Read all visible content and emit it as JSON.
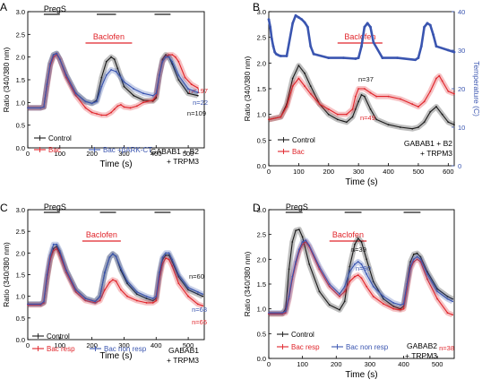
{
  "colors": {
    "black": "#1a1a1a",
    "red": "#e0242a",
    "blue": "#3a55b0",
    "lightblue": "#7b9bd6"
  },
  "chart_data": [
    {
      "panel": "A",
      "type": "line",
      "xlabel": "Time (s)",
      "ylabel": "Ratio (340/380 nm)",
      "xlim": [
        0,
        550
      ],
      "ylim": [
        0.0,
        3.0
      ],
      "xticks": [
        0,
        100,
        200,
        300,
        400,
        500
      ],
      "yticks": [
        "0.0",
        "0.5",
        "1.0",
        "1.5",
        "2.0",
        "2.5",
        "3.0"
      ],
      "stimulus_bars": [
        {
          "x0": 50,
          "x1": 100,
          "label": "PregS",
          "color": "#1a1a1a"
        },
        {
          "x0": 215,
          "x1": 275,
          "label": "",
          "color": "#1a1a1a"
        },
        {
          "x0": 395,
          "x1": 445,
          "label": "",
          "color": "#1a1a1a"
        },
        {
          "x0": 180,
          "x1": 325,
          "label": "Baclofen",
          "color": "#e0242a"
        }
      ],
      "series": [
        {
          "name": "Control",
          "color": "#1a1a1a",
          "x": [
            0,
            40,
            50,
            60,
            70,
            80,
            90,
            100,
            120,
            150,
            180,
            200,
            215,
            230,
            245,
            260,
            270,
            280,
            300,
            330,
            360,
            390,
            400,
            410,
            420,
            430,
            440,
            450,
            470,
            500,
            530
          ],
          "y": [
            0.88,
            0.88,
            0.9,
            1.4,
            1.85,
            2.05,
            2.08,
            1.95,
            1.6,
            1.2,
            1.02,
            0.98,
            1.05,
            1.55,
            1.9,
            2.0,
            1.95,
            1.75,
            1.35,
            1.15,
            1.05,
            1.03,
            1.1,
            1.6,
            1.95,
            2.05,
            2.0,
            1.85,
            1.5,
            1.2,
            1.15
          ],
          "label": "n=109"
        },
        {
          "name": "Bac",
          "color": "#e0242a",
          "x": [
            0,
            40,
            50,
            60,
            70,
            80,
            90,
            100,
            120,
            150,
            180,
            200,
            215,
            230,
            245,
            260,
            270,
            280,
            290,
            300,
            320,
            340,
            360,
            390,
            400,
            410,
            420,
            430,
            440,
            450,
            460,
            470,
            490,
            510,
            530
          ],
          "y": [
            0.88,
            0.88,
            0.9,
            1.35,
            1.8,
            2.0,
            2.05,
            1.95,
            1.55,
            1.15,
            0.88,
            0.78,
            0.75,
            0.72,
            0.72,
            0.78,
            0.85,
            0.92,
            0.95,
            0.9,
            0.88,
            0.92,
            1.0,
            1.05,
            1.15,
            1.6,
            1.9,
            2.0,
            2.05,
            2.05,
            2.0,
            1.9,
            1.55,
            1.4,
            1.32
          ],
          "label": "n=197"
        },
        {
          "name": "Bac +βARK-CT",
          "color": "#3a55b0",
          "x": [
            0,
            40,
            50,
            60,
            70,
            80,
            90,
            100,
            120,
            150,
            180,
            200,
            215,
            230,
            245,
            260,
            275,
            290,
            300,
            330,
            360,
            390,
            400,
            410,
            420,
            430,
            440,
            450,
            470,
            500,
            530
          ],
          "y": [
            0.88,
            0.88,
            0.9,
            1.4,
            1.85,
            2.05,
            2.08,
            1.95,
            1.6,
            1.2,
            1.02,
            0.98,
            1.02,
            1.35,
            1.6,
            1.72,
            1.68,
            1.55,
            1.45,
            1.3,
            1.2,
            1.15,
            1.2,
            1.6,
            1.9,
            2.0,
            2.0,
            1.9,
            1.6,
            1.3,
            1.22
          ],
          "label": "n=22"
        }
      ]
    },
    {
      "panel": "B",
      "type": "line",
      "xlabel": "Time (s)",
      "ylabel": "Ratio (340/380 nm)",
      "y2label": "Temperature (C)",
      "xlim": [
        0,
        620
      ],
      "ylim": [
        0.0,
        3.0
      ],
      "y2lim": [
        0,
        40
      ],
      "xticks": [
        0,
        100,
        200,
        300,
        400,
        500,
        600
      ],
      "yticks": [
        "0.0",
        "0.5",
        "1.0",
        "1.5",
        "2.0",
        "2.5",
        "3.0"
      ],
      "y2ticks": [
        "0",
        "10",
        "20",
        "30",
        "40"
      ],
      "stimulus_bars": [
        {
          "x0": 230,
          "x1": 380,
          "label": "Baclofen",
          "color": "#e0242a"
        }
      ],
      "series": [
        {
          "name": "Control",
          "color": "#1a1a1a",
          "x": [
            0,
            40,
            60,
            80,
            100,
            120,
            140,
            170,
            200,
            230,
            260,
            280,
            290,
            300,
            310,
            320,
            340,
            360,
            400,
            440,
            480,
            500,
            520,
            540,
            560,
            580,
            600,
            620
          ],
          "y": [
            0.9,
            0.95,
            1.2,
            1.7,
            1.95,
            1.8,
            1.55,
            1.2,
            1.0,
            0.9,
            0.85,
            0.95,
            1.1,
            1.25,
            1.38,
            1.35,
            1.1,
            0.9,
            0.8,
            0.75,
            0.72,
            0.75,
            0.85,
            1.05,
            1.15,
            1.0,
            0.85,
            0.8
          ],
          "label": "n=37"
        },
        {
          "name": "Bac",
          "color": "#e0242a",
          "x": [
            0,
            40,
            60,
            80,
            100,
            120,
            140,
            170,
            200,
            230,
            260,
            280,
            290,
            300,
            320,
            340,
            360,
            400,
            440,
            480,
            500,
            520,
            540,
            560,
            570,
            580,
            600,
            620
          ],
          "y": [
            0.9,
            0.95,
            1.15,
            1.55,
            1.7,
            1.55,
            1.4,
            1.2,
            1.1,
            1.0,
            1.0,
            1.1,
            1.35,
            1.5,
            1.5,
            1.42,
            1.35,
            1.35,
            1.3,
            1.2,
            1.15,
            1.25,
            1.45,
            1.7,
            1.75,
            1.65,
            1.45,
            1.4
          ],
          "label": "n=49"
        },
        {
          "name": "Temperature",
          "color": "#3a55b0",
          "axis": "y2",
          "x": [
            0,
            5,
            10,
            15,
            20,
            25,
            30,
            35,
            40,
            60,
            80,
            90,
            100,
            110,
            120,
            130,
            140,
            150,
            200,
            250,
            290,
            300,
            310,
            320,
            330,
            340,
            350,
            380,
            430,
            490,
            500,
            510,
            520,
            530,
            540,
            550,
            560,
            600,
            620
          ],
          "y": [
            38,
            36,
            33,
            31,
            29.5,
            29,
            28.8,
            28.6,
            28.5,
            28.5,
            37,
            39,
            38.5,
            38,
            37.2,
            36,
            31,
            29,
            28,
            28,
            27.8,
            28,
            31,
            36,
            37,
            36,
            32,
            28,
            28,
            27.5,
            28,
            31,
            36,
            37,
            36.5,
            34,
            31,
            30,
            29.5
          ]
        }
      ]
    },
    {
      "panel": "C",
      "type": "line",
      "xlabel": "Time (s)",
      "ylabel": "Ratio (340/380 nm)",
      "xlim": [
        0,
        550
      ],
      "ylim": [
        0.0,
        3.0
      ],
      "xticks": [
        0,
        100,
        200,
        300,
        400,
        500
      ],
      "yticks": [
        "0.0",
        "0.5",
        "1.0",
        "1.5",
        "2.0",
        "2.5",
        "3.0"
      ],
      "stimulus_bars": [
        {
          "x0": 50,
          "x1": 100,
          "label": "PregS",
          "color": "#1a1a1a"
        },
        {
          "x0": 225,
          "x1": 275,
          "label": "",
          "color": "#1a1a1a"
        },
        {
          "x0": 395,
          "x1": 445,
          "label": "",
          "color": "#1a1a1a"
        },
        {
          "x0": 170,
          "x1": 290,
          "label": "Baclofen",
          "color": "#e0242a"
        }
      ],
      "series": [
        {
          "name": "Control",
          "color": "#1a1a1a",
          "x": [
            0,
            40,
            50,
            60,
            70,
            80,
            90,
            100,
            120,
            150,
            180,
            210,
            225,
            240,
            255,
            265,
            275,
            290,
            310,
            340,
            370,
            390,
            400,
            410,
            420,
            430,
            440,
            450,
            470,
            500,
            530,
            545
          ],
          "y": [
            0.82,
            0.82,
            0.85,
            1.4,
            1.85,
            2.1,
            2.15,
            2.0,
            1.6,
            1.15,
            0.95,
            0.88,
            1.0,
            1.55,
            1.9,
            1.98,
            1.92,
            1.6,
            1.3,
            1.05,
            0.95,
            0.9,
            0.95,
            1.5,
            1.85,
            1.95,
            1.95,
            1.8,
            1.45,
            1.15,
            1.05,
            1.0
          ],
          "label": "n=60"
        },
        {
          "name": "Bac resp",
          "color": "#e0242a",
          "x": [
            0,
            40,
            50,
            60,
            70,
            80,
            90,
            100,
            120,
            150,
            180,
            210,
            225,
            240,
            255,
            265,
            275,
            290,
            310,
            340,
            370,
            390,
            400,
            410,
            420,
            430,
            440,
            450,
            470,
            500,
            530,
            545
          ],
          "y": [
            0.8,
            0.8,
            0.85,
            1.4,
            1.85,
            2.05,
            2.1,
            1.95,
            1.55,
            1.1,
            0.9,
            0.85,
            0.9,
            1.15,
            1.32,
            1.38,
            1.35,
            1.15,
            1.0,
            0.9,
            0.85,
            0.85,
            0.9,
            1.4,
            1.75,
            1.88,
            1.85,
            1.7,
            1.3,
            1.0,
            0.82,
            0.78
          ],
          "label": "n=65"
        },
        {
          "name": "Bac non resp",
          "color": "#3a55b0",
          "x": [
            0,
            40,
            50,
            60,
            70,
            80,
            90,
            100,
            120,
            150,
            180,
            210,
            225,
            240,
            255,
            265,
            275,
            290,
            310,
            340,
            370,
            390,
            400,
            410,
            420,
            430,
            440,
            450,
            470,
            500,
            530,
            545
          ],
          "y": [
            0.82,
            0.82,
            0.88,
            1.5,
            1.95,
            2.2,
            2.2,
            2.05,
            1.6,
            1.15,
            0.95,
            0.88,
            1.0,
            1.55,
            1.9,
            1.98,
            1.92,
            1.65,
            1.35,
            1.1,
            1.0,
            0.95,
            1.0,
            1.55,
            1.9,
            2.0,
            2.0,
            1.85,
            1.5,
            1.2,
            1.1,
            1.05
          ],
          "label": "n=68"
        }
      ]
    },
    {
      "panel": "D",
      "type": "line",
      "xlabel": "Time (s)",
      "ylabel": "Ratio (340/380 nm)",
      "xlim": [
        0,
        550
      ],
      "ylim": [
        0.0,
        3.0
      ],
      "xticks": [
        0,
        100,
        200,
        300,
        400,
        500
      ],
      "yticks": [
        "0.0",
        "0.5",
        "1.0",
        "1.5",
        "2.0",
        "2.5",
        "3.0"
      ],
      "stimulus_bars": [
        {
          "x0": 50,
          "x1": 100,
          "label": "PregS",
          "color": "#1a1a1a"
        },
        {
          "x0": 225,
          "x1": 275,
          "label": "",
          "color": "#1a1a1a"
        },
        {
          "x0": 400,
          "x1": 450,
          "label": "",
          "color": "#1a1a1a"
        },
        {
          "x0": 180,
          "x1": 290,
          "label": "Baclofen",
          "color": "#e0242a"
        }
      ],
      "series": [
        {
          "name": "Control",
          "color": "#1a1a1a",
          "x": [
            0,
            40,
            50,
            60,
            70,
            80,
            90,
            100,
            120,
            150,
            180,
            210,
            225,
            240,
            255,
            265,
            275,
            290,
            310,
            340,
            370,
            390,
            400,
            410,
            420,
            430,
            440,
            450,
            470,
            500,
            530,
            545
          ],
          "y": [
            0.9,
            0.9,
            1.0,
            1.8,
            2.35,
            2.58,
            2.6,
            2.45,
            1.9,
            1.35,
            1.08,
            0.98,
            1.15,
            1.85,
            2.3,
            2.42,
            2.35,
            2.0,
            1.55,
            1.2,
            1.05,
            1.0,
            1.05,
            1.5,
            1.95,
            2.1,
            2.12,
            2.05,
            1.75,
            1.4,
            1.25,
            1.2
          ],
          "label": "n=39"
        },
        {
          "name": "Bac resp",
          "color": "#e0242a",
          "x": [
            0,
            40,
            50,
            60,
            70,
            80,
            90,
            100,
            110,
            120,
            150,
            180,
            210,
            225,
            240,
            255,
            265,
            275,
            290,
            310,
            340,
            370,
            390,
            400,
            410,
            420,
            430,
            440,
            450,
            470,
            500,
            530,
            545
          ],
          "y": [
            0.9,
            0.9,
            0.92,
            1.2,
            1.6,
            1.9,
            2.15,
            2.3,
            2.35,
            2.25,
            1.8,
            1.45,
            1.25,
            1.35,
            1.55,
            1.65,
            1.68,
            1.62,
            1.45,
            1.25,
            1.1,
            1.0,
            0.98,
            1.0,
            1.4,
            1.8,
            1.95,
            2.0,
            1.95,
            1.6,
            1.2,
            0.92,
            0.88
          ],
          "label": "n=38"
        },
        {
          "name": "Bac non resp",
          "color": "#3a55b0",
          "x": [
            0,
            40,
            50,
            60,
            70,
            80,
            90,
            100,
            110,
            120,
            150,
            180,
            210,
            225,
            240,
            255,
            265,
            275,
            290,
            310,
            340,
            370,
            390,
            400,
            410,
            420,
            430,
            440,
            450,
            470,
            500,
            530,
            545
          ],
          "y": [
            0.92,
            0.92,
            0.95,
            1.25,
            1.65,
            1.95,
            2.2,
            2.35,
            2.38,
            2.28,
            1.85,
            1.5,
            1.3,
            1.45,
            1.75,
            1.9,
            1.95,
            1.9,
            1.7,
            1.45,
            1.25,
            1.12,
            1.08,
            1.1,
            1.5,
            1.85,
            2.0,
            2.05,
            2.0,
            1.7,
            1.35,
            1.2,
            1.15
          ],
          "label": "n=90"
        }
      ]
    }
  ],
  "panels": [
    {
      "letter": "A",
      "legend": [
        "Control",
        "Bac",
        "Bac +βARK-CT"
      ],
      "caption": [
        "GABAB1 + B2",
        "+ TRPM3"
      ]
    },
    {
      "letter": "B",
      "legend": [
        "Control",
        "Bac"
      ],
      "caption": [
        "GABAB1 + B2",
        "+ TRPM3"
      ]
    },
    {
      "letter": "C",
      "legend": [
        "Control",
        "Bac resp",
        "Bac non resp"
      ],
      "caption": [
        "GABAB1",
        "+ TRPM3"
      ]
    },
    {
      "letter": "D",
      "legend": [
        "Control",
        "Bac resp",
        "Bac non resp"
      ],
      "caption": [
        "GABAB2",
        "+ TRPM3"
      ]
    }
  ]
}
